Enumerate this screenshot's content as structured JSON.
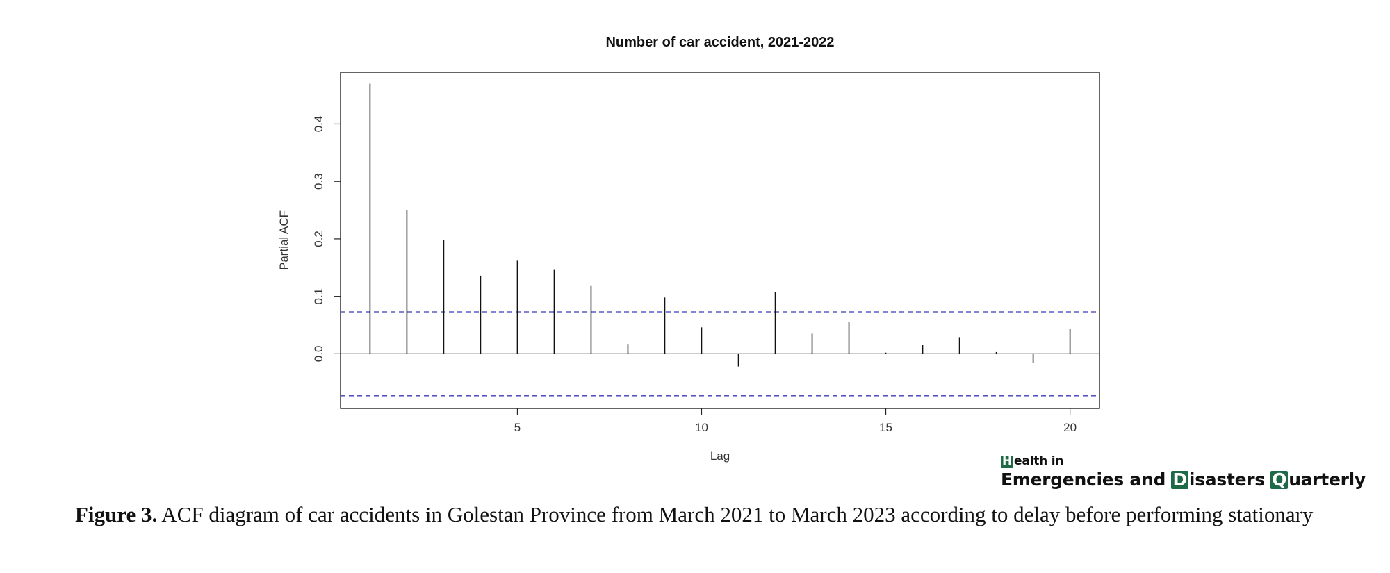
{
  "chart_data": {
    "type": "bar",
    "title": "Number of car accident, 2021-2022",
    "xlabel": "Lag",
    "ylabel": "Partial ACF",
    "x": [
      1,
      2,
      3,
      4,
      5,
      6,
      7,
      8,
      9,
      10,
      11,
      12,
      13,
      14,
      15,
      16,
      17,
      18,
      19,
      20
    ],
    "values": [
      0.47,
      0.25,
      0.198,
      0.136,
      0.162,
      0.146,
      0.118,
      0.016,
      0.098,
      0.046,
      -0.022,
      0.107,
      0.035,
      0.056,
      0.002,
      0.015,
      0.029,
      0.003,
      -0.016,
      0.043
    ],
    "xlim": [
      0.2,
      20.8
    ],
    "ylim": [
      -0.095,
      0.49
    ],
    "xticks": [
      "5",
      "10",
      "15",
      "20"
    ],
    "xtick_values": [
      5,
      10,
      15,
      20
    ],
    "yticks": [
      "0.0",
      "0.1",
      "0.2",
      "0.3",
      "0.4"
    ],
    "ytick_values": [
      0.0,
      0.1,
      0.2,
      0.3,
      0.4
    ],
    "confidence_bound": 0.073,
    "zero_line": true,
    "grid": false,
    "colors": {
      "bars": "#111111",
      "confidence": "#3b3bb8",
      "frame": "#222222"
    }
  },
  "logo": {
    "line1_box": "H",
    "line1_rest": "ealth in",
    "line2_a": "Emergencies and ",
    "line2_box1": "D",
    "line2_b": "isasters ",
    "line2_box2": "Q",
    "line2_c": "uarterly",
    "accent": "#1e6a46"
  },
  "caption": {
    "label": "Figure 3.",
    "text": "ACF diagram of car accidents in Golestan Province from March 2021 to March 2023 according to delay before performing stationary"
  }
}
